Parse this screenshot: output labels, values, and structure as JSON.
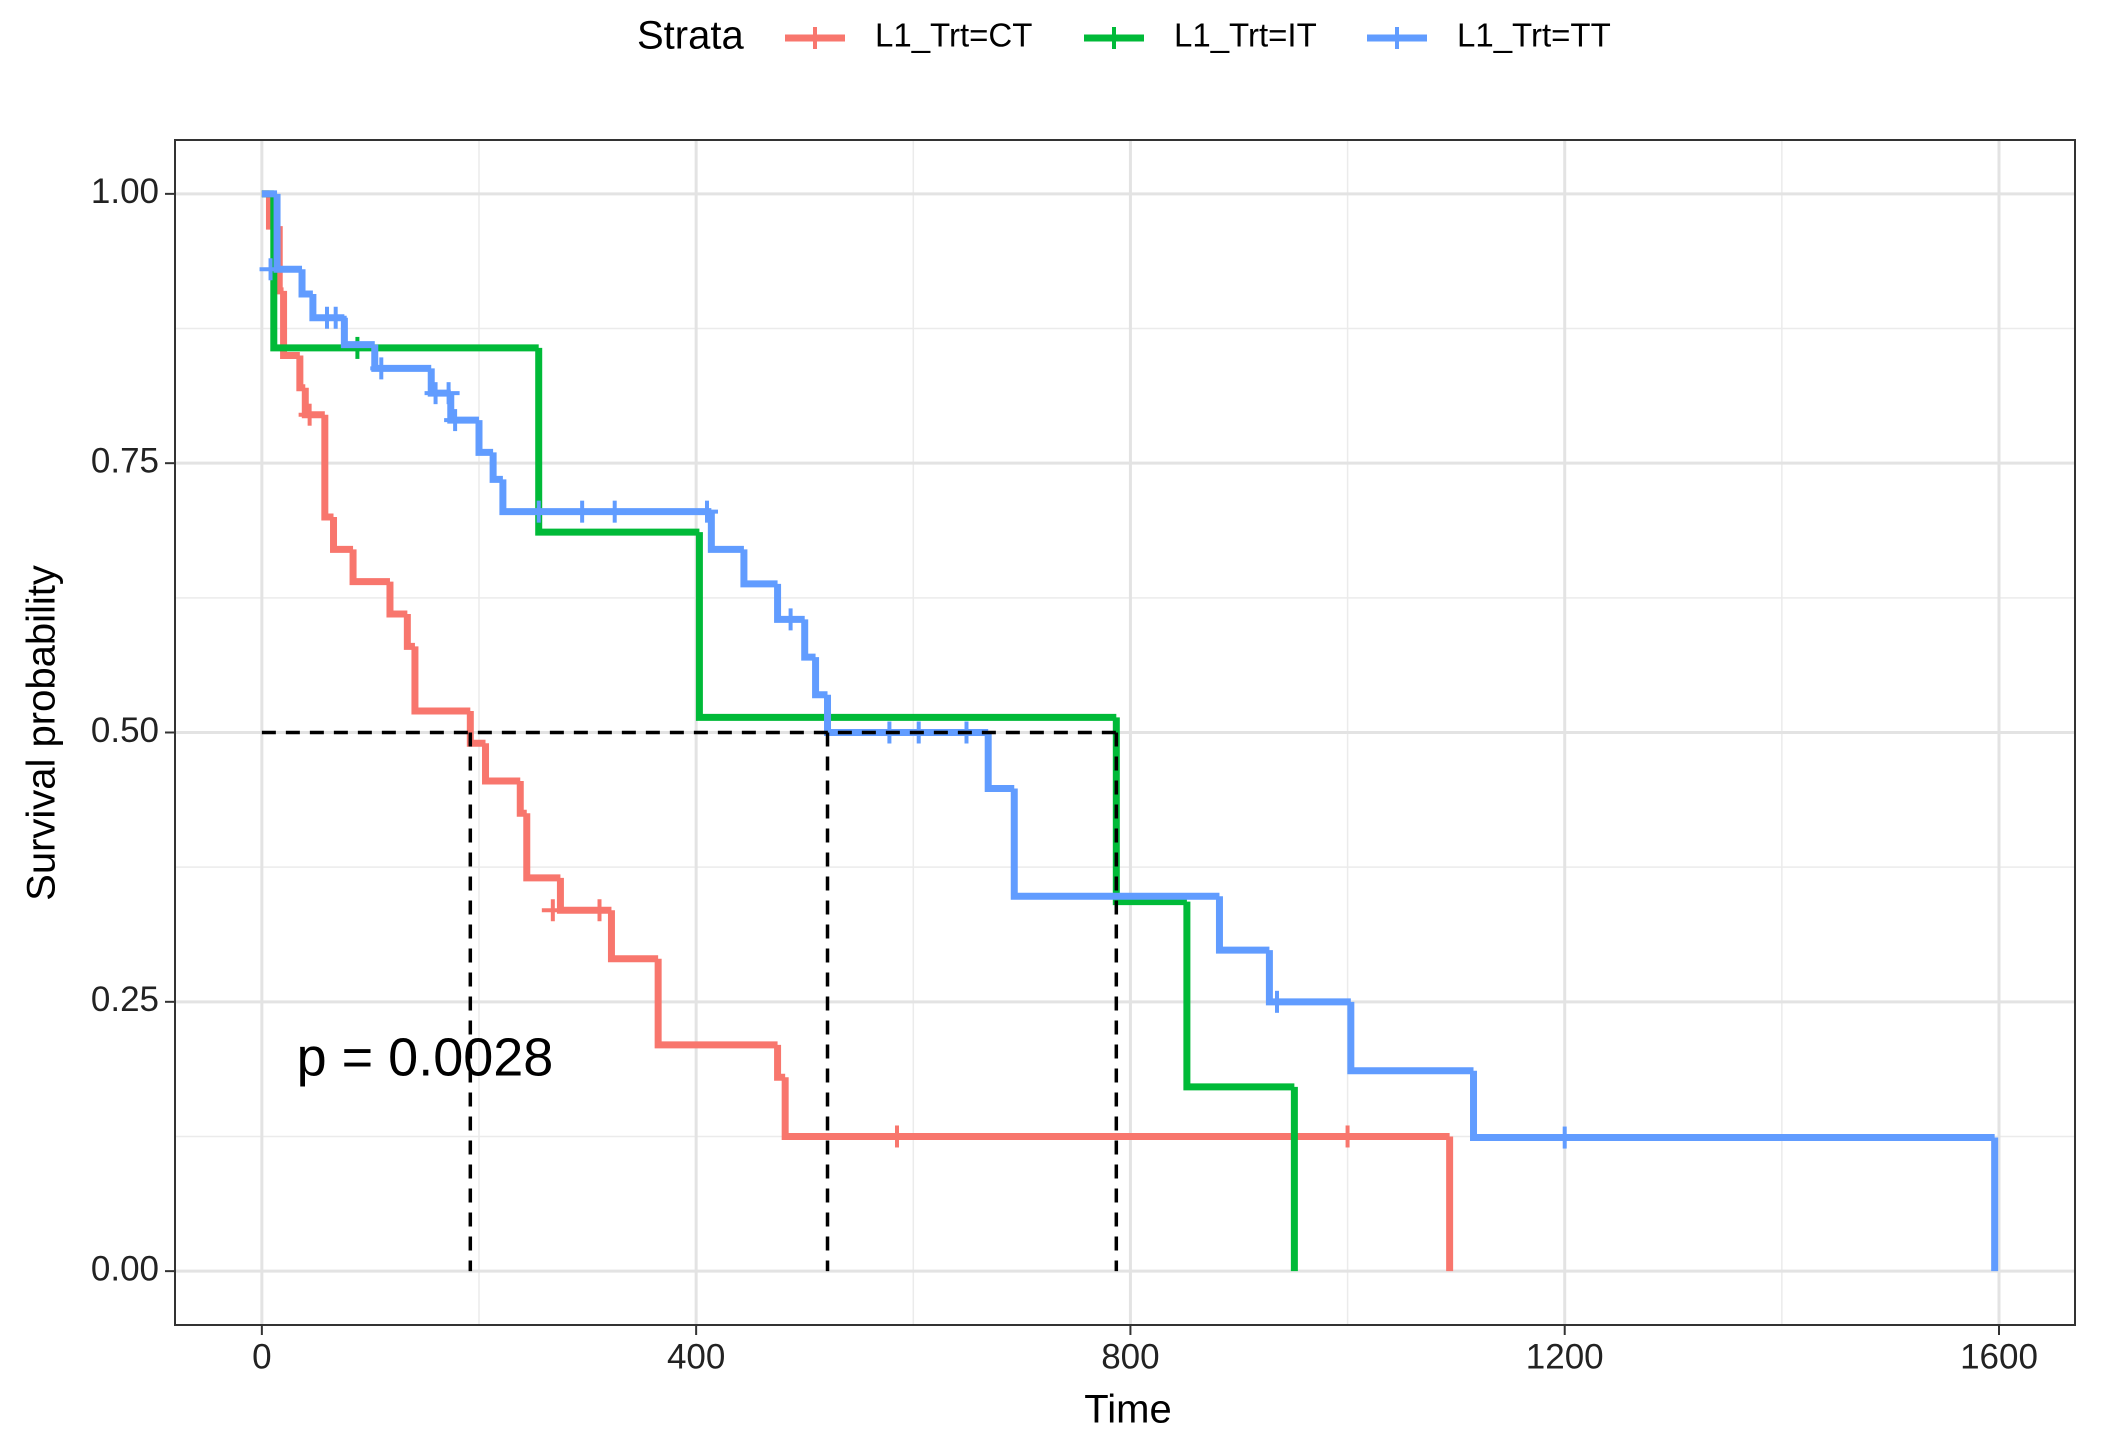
{
  "chart_data": {
    "type": "survival",
    "x_label": "Time",
    "y_label": "Survival probability",
    "legend_title": "Strata",
    "legend_position": "top",
    "annotation": {
      "text": "p = 0.0028",
      "x": 32,
      "y": 0.195
    },
    "xlim": [
      -80,
      1670
    ],
    "ylim": [
      -0.05,
      1.05
    ],
    "xticks": [
      0,
      400,
      800,
      1200,
      1600
    ],
    "yticks": [
      {
        "value": 0,
        "label": "0.00"
      },
      {
        "value": 0.25,
        "label": "0.25"
      },
      {
        "value": 0.5,
        "label": "0.50"
      },
      {
        "value": 0.75,
        "label": "0.75"
      },
      {
        "value": 1,
        "label": "1.00"
      }
    ],
    "x_minor": [
      200,
      600,
      1000,
      1400
    ],
    "y_minor": [
      0.125,
      0.375,
      0.625,
      0.875
    ],
    "grid": true,
    "median_line": {
      "survival": 0.5,
      "times": [
        192,
        521,
        787
      ]
    },
    "series": [
      {
        "name": "L1_Trt=CT",
        "color": "#f8766d",
        "time": [
          0,
          7,
          16,
          20,
          35,
          40,
          58,
          66,
          84,
          118,
          134,
          141,
          192,
          206,
          238,
          244,
          275,
          322,
          365,
          475,
          482,
          1094
        ],
        "survival": [
          1,
          0.97,
          0.91,
          0.85,
          0.82,
          0.795,
          0.7,
          0.67,
          0.64,
          0.61,
          0.58,
          0.52,
          0.49,
          0.455,
          0.425,
          0.365,
          0.335,
          0.29,
          0.21,
          0.18,
          0.125,
          0
        ],
        "censor_time": [
          44,
          268,
          311,
          585,
          1000
        ],
        "censor_survival": [
          0.795,
          0.335,
          0.335,
          0.125,
          0.125
        ]
      },
      {
        "name": "L1_Trt=IT",
        "color": "#00ba38",
        "time": [
          0,
          11,
          255,
          403,
          787,
          852,
          951
        ],
        "survival": [
          1,
          0.857,
          0.686,
          0.514,
          0.343,
          0.171,
          0
        ],
        "censor_time": [
          88
        ],
        "censor_survival": [
          0.857
        ]
      },
      {
        "name": "L1_Trt=TT",
        "color": "#619cff",
        "time": [
          0,
          14,
          37,
          47,
          76,
          104,
          156,
          174,
          200,
          213,
          222,
          414,
          444,
          475,
          500,
          510,
          521,
          669,
          693,
          882,
          928,
          1003,
          1116,
          1596
        ],
        "survival": [
          1,
          0.93,
          0.907,
          0.885,
          0.86,
          0.838,
          0.815,
          0.79,
          0.76,
          0.735,
          0.705,
          0.67,
          0.638,
          0.605,
          0.57,
          0.535,
          0.5,
          0.448,
          0.348,
          0.298,
          0.25,
          0.186,
          0.124,
          0
        ],
        "censor_time": [
          8,
          60,
          68,
          110,
          160,
          172,
          178,
          255,
          295,
          325,
          410,
          487,
          578,
          605,
          649,
          935,
          1200
        ],
        "censor_survival": [
          0.93,
          0.885,
          0.885,
          0.838,
          0.815,
          0.815,
          0.79,
          0.705,
          0.705,
          0.705,
          0.705,
          0.605,
          0.5,
          0.5,
          0.5,
          0.25,
          0.124
        ]
      }
    ]
  }
}
